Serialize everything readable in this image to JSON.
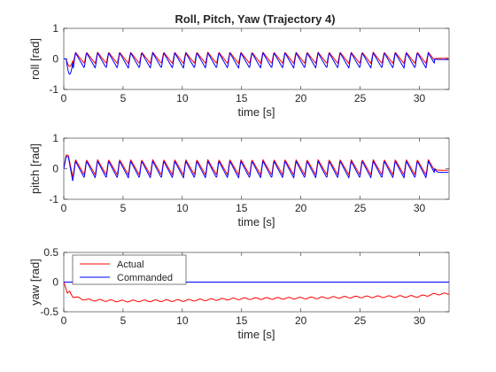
{
  "chart_data": [
    {
      "type": "line",
      "title": "Roll, Pitch, Yaw (Trajectory 4)",
      "xlabel": "time [s]",
      "ylabel": "roll [rad]",
      "xlim": [
        0,
        32.5
      ],
      "ylim": [
        -1,
        1
      ],
      "xticks": [
        0,
        5,
        10,
        15,
        20,
        25,
        30
      ],
      "yticks": [
        -1,
        0,
        1
      ],
      "grid": false,
      "series": [
        {
          "name": "Actual",
          "color": "#ff0000",
          "description_values": {
            "pattern": "periodic oscillation",
            "period_s": 0.93,
            "amplitude_max": 0.22,
            "amplitude_min": -0.15,
            "initial_dip": -0.25,
            "oscillation_end_s": 31.3,
            "final_value": 0.02
          }
        },
        {
          "name": "Commanded",
          "color": "#0000ff",
          "description_values": {
            "pattern": "periodic oscillation",
            "period_s": 0.93,
            "amplitude_max": 0.2,
            "amplitude_min": -0.3,
            "initial_dip": -0.5,
            "oscillation_end_s": 31.3,
            "final_value": -0.02
          }
        }
      ]
    },
    {
      "type": "line",
      "title": "",
      "xlabel": "time [s]",
      "ylabel": "pitch [rad]",
      "xlim": [
        0,
        32.5
      ],
      "ylim": [
        -1,
        1
      ],
      "xticks": [
        0,
        5,
        10,
        15,
        20,
        25,
        30
      ],
      "yticks": [
        -1,
        0,
        1
      ],
      "grid": false,
      "series": [
        {
          "name": "Actual",
          "color": "#ff0000",
          "description_values": {
            "pattern": "periodic oscillation",
            "period_s": 0.93,
            "amplitude_max": 0.3,
            "amplitude_min": -0.2,
            "initial_peak": 0.45,
            "initial_dip": -0.35,
            "oscillation_end_s": 31.3,
            "final_value": -0.05
          }
        },
        {
          "name": "Commanded",
          "color": "#0000ff",
          "description_values": {
            "pattern": "periodic oscillation",
            "period_s": 0.93,
            "amplitude_max": 0.25,
            "amplitude_min": -0.3,
            "initial_peak": 0.4,
            "initial_dip": -0.5,
            "oscillation_end_s": 31.3,
            "final_value": -0.12
          }
        }
      ]
    },
    {
      "type": "line",
      "title": "",
      "xlabel": "time [s]",
      "ylabel": "yaw [rad]",
      "xlim": [
        0,
        32.5
      ],
      "ylim": [
        -0.5,
        0.5
      ],
      "xticks": [
        0,
        5,
        10,
        15,
        20,
        25,
        30
      ],
      "yticks": [
        -0.5,
        0,
        0.5
      ],
      "grid": false,
      "legend": {
        "location": "top-left",
        "entries": [
          "Actual",
          "Commanded"
        ]
      },
      "series": [
        {
          "name": "Actual",
          "color": "#ff0000",
          "points": [
            [
              0,
              0
            ],
            [
              0.3,
              -0.2
            ],
            [
              0.5,
              -0.15
            ],
            [
              0.8,
              -0.25
            ],
            [
              2,
              -0.3
            ],
            [
              5,
              -0.32
            ],
            [
              10,
              -0.31
            ],
            [
              15,
              -0.28
            ],
            [
              20,
              -0.27
            ],
            [
              25,
              -0.25
            ],
            [
              30,
              -0.24
            ],
            [
              31.5,
              -0.2
            ],
            [
              32.5,
              -0.2
            ]
          ]
        },
        {
          "name": "Commanded",
          "color": "#0000ff",
          "points": [
            [
              0,
              0
            ],
            [
              32.5,
              0
            ]
          ]
        }
      ]
    }
  ]
}
